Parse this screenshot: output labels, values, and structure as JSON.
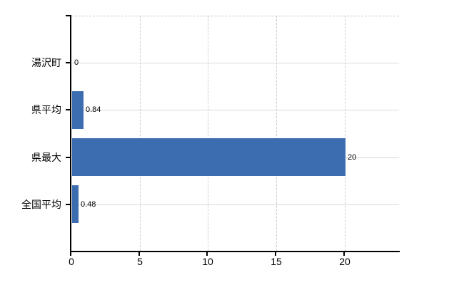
{
  "chart_data": {
    "type": "bar",
    "orientation": "horizontal",
    "title": "",
    "categories": [
      "湯沢町",
      "県平均",
      "県最大",
      "全国平均"
    ],
    "values": [
      0,
      0.84,
      20,
      0.48
    ],
    "value_labels": [
      "0",
      "0.84",
      "20",
      "0.48"
    ],
    "x_ticks": [
      "0",
      "5",
      "10",
      "15",
      "20"
    ],
    "x_tick_values": [
      0,
      5,
      10,
      15,
      20
    ],
    "xlim": [
      0,
      24
    ],
    "grid": true,
    "legend": false,
    "colors": {
      "bar": "#3b6db0",
      "axis": "#000000",
      "grid_horizontal": "#d5dcd5",
      "grid_vertical": "#cdccd6",
      "plot_top_border": "#c9c9d1",
      "text": "#000000"
    }
  }
}
